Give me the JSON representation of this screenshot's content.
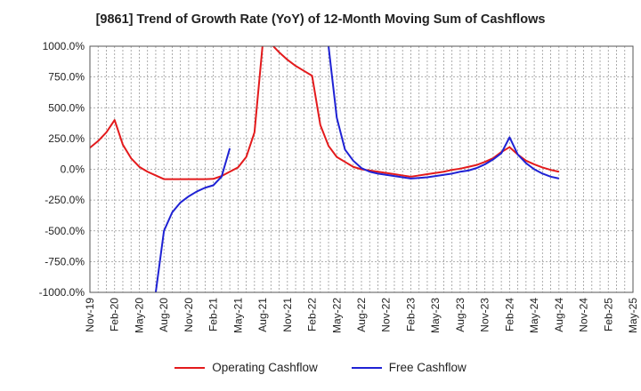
{
  "chart_data": {
    "type": "line",
    "title": "[9861]  Trend of Growth Rate (YoY) of 12-Month Moving Sum of Cashflows",
    "xlabel": "",
    "ylabel": "",
    "ylim": [
      -1000,
      1000
    ],
    "y_ticks": [
      "1000.0%",
      "750.0%",
      "500.0%",
      "250.0%",
      "0.0%",
      "-250.0%",
      "-500.0%",
      "-750.0%",
      "-1000.0%"
    ],
    "y_tick_values": [
      1000,
      750,
      500,
      250,
      0,
      -250,
      -500,
      -750,
      -1000
    ],
    "x_range": [
      "2019-11",
      "2025-05"
    ],
    "x_ticks": [
      "Nov-19",
      "Feb-20",
      "May-20",
      "Aug-20",
      "Nov-20",
      "Feb-21",
      "May-21",
      "Aug-21",
      "Nov-21",
      "Feb-22",
      "May-22",
      "Aug-22",
      "Nov-22",
      "Feb-23",
      "May-23",
      "Aug-23",
      "Nov-23",
      "Feb-24",
      "May-24",
      "Aug-24",
      "Nov-24",
      "Feb-25",
      "May-25"
    ],
    "grid": true,
    "legend_position": "bottom",
    "series": [
      {
        "name": "Operating Cashflow",
        "color": "#e31a1c",
        "x": [
          "2019-11",
          "2019-12",
          "2020-01",
          "2020-02",
          "2020-03",
          "2020-04",
          "2020-05",
          "2020-06",
          "2020-07",
          "2020-08",
          "2020-09",
          "2020-10",
          "2020-11",
          "2020-12",
          "2021-01",
          "2021-02",
          "2021-03",
          "2021-04",
          "2021-05",
          "2021-06",
          "2021-07",
          "2021-08",
          "2021-09",
          "2021-10",
          "2021-11",
          "2021-12",
          "2022-01",
          "2022-02",
          "2022-03",
          "2022-04",
          "2022-05",
          "2022-06",
          "2022-07",
          "2022-08",
          "2022-09",
          "2022-10",
          "2022-11",
          "2022-12",
          "2023-01",
          "2023-02",
          "2023-03",
          "2023-04",
          "2023-05",
          "2023-06",
          "2023-07",
          "2023-08",
          "2023-09",
          "2023-10",
          "2023-11",
          "2023-12",
          "2024-01",
          "2024-02",
          "2024-03",
          "2024-04",
          "2024-05",
          "2024-06",
          "2024-07",
          "2024-08"
        ],
        "y": [
          175,
          230,
          300,
          400,
          200,
          90,
          20,
          -20,
          -50,
          -80,
          -80,
          -80,
          -80,
          -80,
          -80,
          -78,
          -55,
          -20,
          15,
          100,
          300,
          1020,
          1020,
          950,
          890,
          840,
          800,
          760,
          360,
          190,
          100,
          60,
          20,
          0,
          -10,
          -20,
          -30,
          -40,
          -50,
          -60,
          -50,
          -40,
          -30,
          -20,
          -5,
          5,
          20,
          35,
          60,
          90,
          140,
          180,
          120,
          70,
          40,
          15,
          -5,
          -20
        ]
      },
      {
        "name": "Free Cashflow",
        "color": "#1f22d4",
        "segments": [
          {
            "x": [
              "2020-07",
              "2020-08",
              "2020-09",
              "2020-10",
              "2020-11",
              "2020-12",
              "2021-01",
              "2021-02",
              "2021-03",
              "2021-04"
            ],
            "y": [
              -1000,
              -500,
              -350,
              -270,
              -220,
              -180,
              -150,
              -130,
              -60,
              170
            ]
          },
          {
            "x": [
              "2022-04",
              "2022-05",
              "2022-06",
              "2022-07",
              "2022-08",
              "2022-09",
              "2022-10",
              "2022-11",
              "2022-12",
              "2023-01",
              "2023-02",
              "2023-03",
              "2023-04",
              "2023-05",
              "2023-06",
              "2023-07",
              "2023-08",
              "2023-09",
              "2023-10",
              "2023-11",
              "2023-12",
              "2024-01",
              "2024-02",
              "2024-03",
              "2024-04",
              "2024-05",
              "2024-06",
              "2024-07",
              "2024-08"
            ],
            "y": [
              1000,
              420,
              160,
              70,
              10,
              -20,
              -35,
              -45,
              -55,
              -65,
              -75,
              -70,
              -65,
              -55,
              -45,
              -35,
              -20,
              -10,
              10,
              40,
              80,
              130,
              260,
              120,
              50,
              0,
              -35,
              -60,
              -75
            ]
          }
        ]
      }
    ]
  }
}
